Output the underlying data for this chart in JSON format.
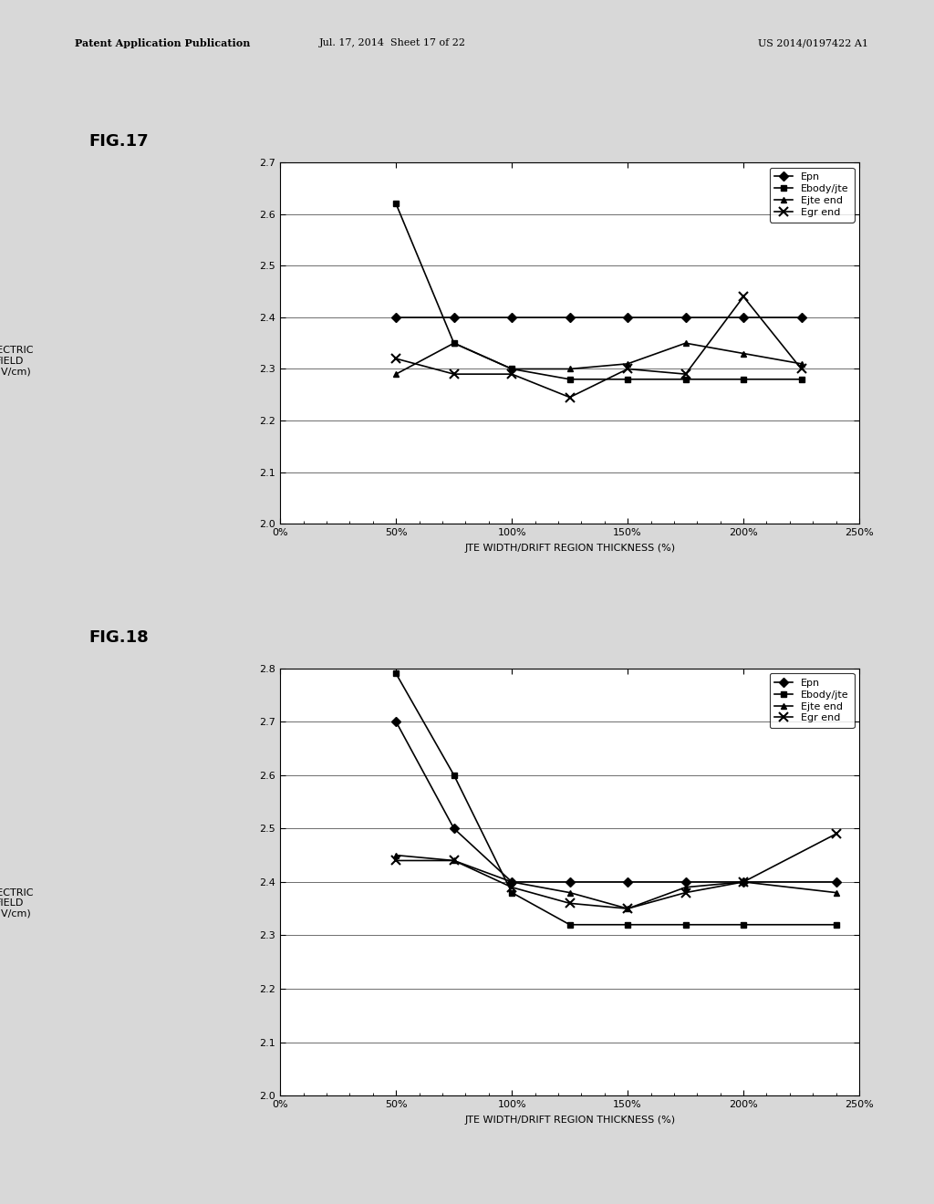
{
  "fig17": {
    "title": "FIG.17",
    "x": [
      50,
      75,
      100,
      125,
      150,
      175,
      200,
      225
    ],
    "Epn": [
      2.4,
      2.4,
      2.4,
      2.4,
      2.4,
      2.4,
      2.4,
      2.4
    ],
    "Ebody_jte": [
      2.62,
      2.35,
      2.3,
      2.28,
      2.28,
      2.28,
      2.28,
      2.28
    ],
    "Ejte_end": [
      2.29,
      2.35,
      2.3,
      2.3,
      2.31,
      2.35,
      2.33,
      2.31
    ],
    "Egr_end": [
      2.32,
      2.29,
      2.29,
      2.245,
      2.3,
      2.29,
      2.44,
      2.3
    ],
    "ylim": [
      2.0,
      2.7
    ],
    "yticks": [
      2.0,
      2.1,
      2.2,
      2.3,
      2.4,
      2.5,
      2.6,
      2.7
    ],
    "xlim": [
      0,
      250
    ],
    "xticks": [
      0,
      50,
      100,
      150,
      200,
      250
    ],
    "xlabel": "JTE WIDTH/DRIFT REGION THICKNESS (%)",
    "ylabel": "ELECTRIC\nFIELD\n(MV/cm)"
  },
  "fig18": {
    "title": "FIG.18",
    "x": [
      50,
      75,
      100,
      125,
      150,
      175,
      200,
      240
    ],
    "Epn": [
      2.7,
      2.5,
      2.4,
      2.4,
      2.4,
      2.4,
      2.4,
      2.4
    ],
    "Ebody_jte": [
      2.79,
      2.6,
      2.38,
      2.32,
      2.32,
      2.32,
      2.32,
      2.32
    ],
    "Ejte_end": [
      2.45,
      2.44,
      2.4,
      2.38,
      2.35,
      2.39,
      2.4,
      2.38
    ],
    "Egr_end": [
      2.44,
      2.44,
      2.39,
      2.36,
      2.35,
      2.38,
      2.4,
      2.49
    ],
    "ylim": [
      2.0,
      2.8
    ],
    "yticks": [
      2.0,
      2.1,
      2.2,
      2.3,
      2.4,
      2.5,
      2.6,
      2.7,
      2.8
    ],
    "xlim": [
      0,
      250
    ],
    "xticks": [
      0,
      50,
      100,
      150,
      200,
      250
    ],
    "xlabel": "JTE WIDTH/DRIFT REGION THICKNESS (%)",
    "ylabel": "ELECTRIC\nFIELD\n(MV/cm)"
  },
  "header_left": "Patent Application Publication",
  "header_mid": "Jul. 17, 2014  Sheet 17 of 22",
  "header_right": "US 2014/0197422 A1",
  "bg_color": "#d8d8d8",
  "plot_bg": "#e8e8e8",
  "line_color": "#000000",
  "legend_labels": [
    "Epn",
    "Ebody/jte",
    "Ejte end",
    "Egr end"
  ],
  "font_size_figtitle": 13,
  "font_size_axis": 8,
  "font_size_tick": 8,
  "font_size_legend": 8,
  "font_size_header": 8
}
